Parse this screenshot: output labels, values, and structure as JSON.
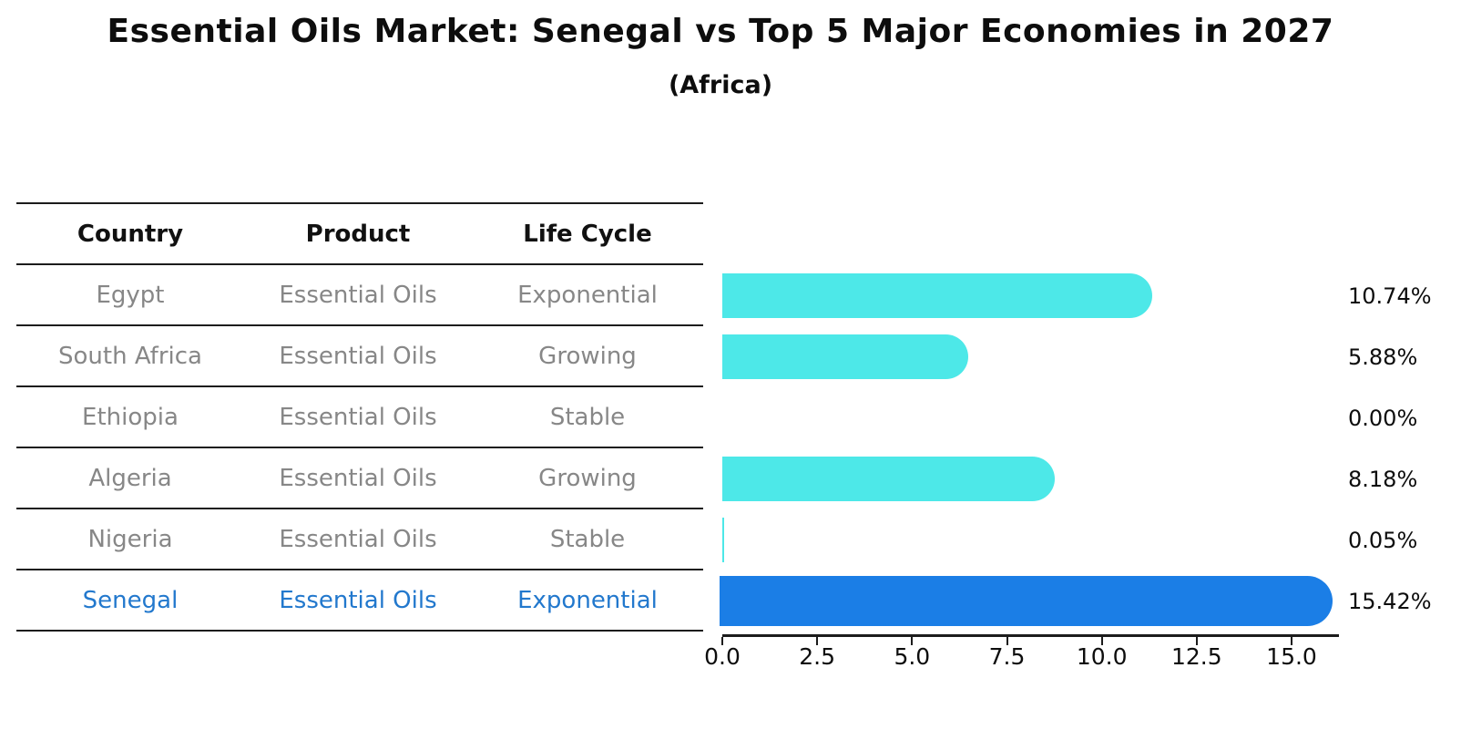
{
  "chart_data": {
    "type": "bar",
    "orientation": "horizontal",
    "title": "Essential Oils Market: Senegal vs Top 5 Major Economies in 2027",
    "subtitle": "(Africa)",
    "table_headers": [
      "Country",
      "Product",
      "Life Cycle"
    ],
    "rows": [
      {
        "country": "Egypt",
        "product": "Essential Oils",
        "life_cycle": "Exponential",
        "value": 10.74,
        "value_label": "10.74%",
        "highlight": false
      },
      {
        "country": "South Africa",
        "product": "Essential Oils",
        "life_cycle": "Growing",
        "value": 5.88,
        "value_label": "5.88%",
        "highlight": false
      },
      {
        "country": "Ethiopia",
        "product": "Essential Oils",
        "life_cycle": "Stable",
        "value": 0.0,
        "value_label": "0.00%",
        "highlight": false
      },
      {
        "country": "Algeria",
        "product": "Essential Oils",
        "life_cycle": "Growing",
        "value": 8.18,
        "value_label": "8.18%",
        "highlight": false
      },
      {
        "country": "Nigeria",
        "product": "Essential Oils",
        "life_cycle": "Stable",
        "value": 0.05,
        "value_label": "0.05%",
        "highlight": false
      },
      {
        "country": "Senegal",
        "product": "Essential Oils",
        "life_cycle": "Exponential",
        "value": 15.42,
        "value_label": "15.42%",
        "highlight": true
      }
    ],
    "x_ticks": [
      "0.0",
      "2.5",
      "5.0",
      "7.5",
      "10.0",
      "12.5",
      "15.0"
    ],
    "x_tick_values": [
      0,
      2.5,
      5,
      7.5,
      10,
      12.5,
      15
    ],
    "xlim": [
      0,
      16.2
    ],
    "grid": false,
    "legend": "none",
    "colors": {
      "bar": "#4DE8E8",
      "highlight_bar": "#1B7EE6",
      "highlight_text": "#2278CD",
      "table_text": "#878787",
      "header_text": "#111111",
      "value_text": "#0d0d0d",
      "axis": "#1c1c1c"
    }
  }
}
